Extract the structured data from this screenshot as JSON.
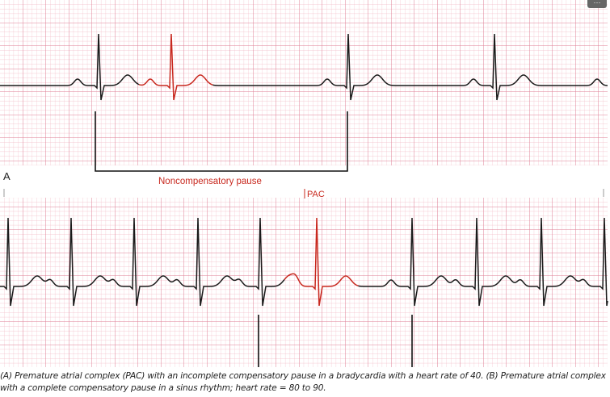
{
  "menu": "···",
  "panel_a": {
    "label": "A",
    "annotation": "Noncompensatory pause"
  },
  "panel_b": {
    "marker": "PAC"
  },
  "caption": "(A) Premature atrial complex (PAC) with an incomplete compensatory pause in a bradycardia with a heart rate of 40. (B) Premature atrial complex with a complete compensatory pause in a sinus rhythm; heart rate = 80 to 90."
}
